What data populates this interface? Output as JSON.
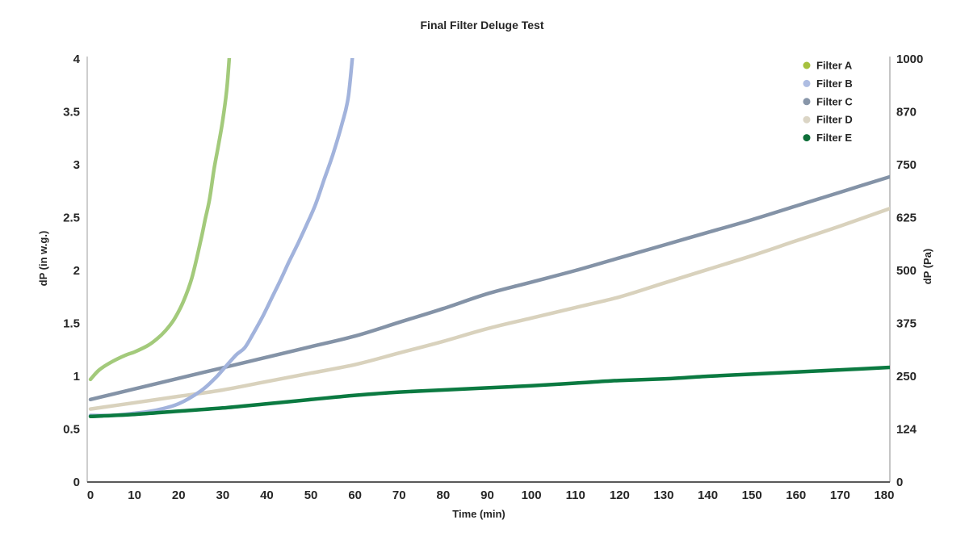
{
  "chart_data": {
    "type": "line",
    "title": "Final Filter Deluge Test",
    "xlabel": "Time (min)",
    "ylabel_left": "dP (in w.g.)",
    "ylabel_right": "dP (Pa)",
    "xlim": [
      0,
      181.6
    ],
    "ylim_left": [
      0,
      4
    ],
    "x_ticks": [
      0,
      10,
      20,
      30,
      40,
      50,
      60,
      70,
      80,
      90,
      100,
      110,
      120,
      130,
      140,
      150,
      160,
      170,
      180
    ],
    "left_tick_labels": [
      "0",
      "0.5",
      "1",
      "1.5",
      "2",
      "2.5",
      "3",
      "3.5",
      "4"
    ],
    "right_tick_labels": [
      "0",
      "124",
      "250",
      "375",
      "500",
      "625",
      "750",
      "870",
      "1000"
    ],
    "grid": false,
    "legend_position": "top-right-inside",
    "text_color": "#262626",
    "axis_line_color": "#a6a6a6",
    "baseline_color": "#595959",
    "series": [
      {
        "name": "Filter C",
        "line_color": "#8493a7",
        "marker_color": "#8896a9",
        "points": [
          [
            0,
            0.78
          ],
          [
            10,
            0.88
          ],
          [
            20,
            0.98
          ],
          [
            30,
            1.08
          ],
          [
            40,
            1.18
          ],
          [
            50,
            1.28
          ],
          [
            60,
            1.38
          ],
          [
            70,
            1.51
          ],
          [
            80,
            1.64
          ],
          [
            90,
            1.78
          ],
          [
            100,
            1.89
          ],
          [
            110,
            2.0
          ],
          [
            120,
            2.12
          ],
          [
            130,
            2.24
          ],
          [
            140,
            2.36
          ],
          [
            150,
            2.48
          ],
          [
            160,
            2.61
          ],
          [
            170,
            2.74
          ],
          [
            181.6,
            2.89
          ]
        ]
      },
      {
        "name": "Filter D",
        "line_color": "#d9d2bd",
        "marker_color": "#dbd5c5",
        "points": [
          [
            0,
            0.69
          ],
          [
            10,
            0.75
          ],
          [
            20,
            0.81
          ],
          [
            30,
            0.87
          ],
          [
            40,
            0.95
          ],
          [
            50,
            1.03
          ],
          [
            60,
            1.11
          ],
          [
            70,
            1.22
          ],
          [
            80,
            1.33
          ],
          [
            90,
            1.45
          ],
          [
            100,
            1.55
          ],
          [
            110,
            1.65
          ],
          [
            120,
            1.75
          ],
          [
            130,
            1.88
          ],
          [
            140,
            2.01
          ],
          [
            150,
            2.14
          ],
          [
            160,
            2.28
          ],
          [
            170,
            2.42
          ],
          [
            181.6,
            2.59
          ]
        ]
      },
      {
        "name": "Filter A",
        "line_color": "#a3ca7b",
        "marker_color": "#a6c13e",
        "points": [
          [
            0,
            0.97
          ],
          [
            2,
            1.06
          ],
          [
            5,
            1.14
          ],
          [
            8,
            1.2
          ],
          [
            10,
            1.23
          ],
          [
            13,
            1.29
          ],
          [
            15,
            1.35
          ],
          [
            17,
            1.43
          ],
          [
            19,
            1.54
          ],
          [
            21,
            1.7
          ],
          [
            23,
            1.93
          ],
          [
            25,
            2.28
          ],
          [
            26,
            2.48
          ],
          [
            27,
            2.67
          ],
          [
            28,
            2.95
          ],
          [
            29,
            3.18
          ],
          [
            30,
            3.42
          ],
          [
            31,
            3.75
          ],
          [
            31.8,
            4.2
          ]
        ]
      },
      {
        "name": "Filter B",
        "line_color": "#a2b3dc",
        "marker_color": "#aebde2",
        "points": [
          [
            0,
            0.63
          ],
          [
            5,
            0.63
          ],
          [
            10,
            0.65
          ],
          [
            15,
            0.68
          ],
          [
            20,
            0.74
          ],
          [
            25,
            0.86
          ],
          [
            28,
            0.97
          ],
          [
            30,
            1.06
          ],
          [
            33,
            1.2
          ],
          [
            35,
            1.27
          ],
          [
            37,
            1.41
          ],
          [
            39,
            1.56
          ],
          [
            41,
            1.73
          ],
          [
            43,
            1.9
          ],
          [
            45,
            2.08
          ],
          [
            47,
            2.25
          ],
          [
            49,
            2.43
          ],
          [
            51,
            2.62
          ],
          [
            53,
            2.86
          ],
          [
            55,
            3.1
          ],
          [
            57,
            3.38
          ],
          [
            58.5,
            3.65
          ],
          [
            59.8,
            4.2
          ]
        ]
      },
      {
        "name": "Filter E",
        "line_color": "#0b7a41",
        "marker_color": "#0e6f39",
        "points": [
          [
            0,
            0.62
          ],
          [
            10,
            0.64
          ],
          [
            20,
            0.67
          ],
          [
            30,
            0.7
          ],
          [
            40,
            0.74
          ],
          [
            50,
            0.78
          ],
          [
            60,
            0.82
          ],
          [
            70,
            0.85
          ],
          [
            80,
            0.87
          ],
          [
            90,
            0.89
          ],
          [
            100,
            0.91
          ],
          [
            110,
            0.935
          ],
          [
            120,
            0.96
          ],
          [
            130,
            0.975
          ],
          [
            140,
            1.0
          ],
          [
            150,
            1.02
          ],
          [
            160,
            1.04
          ],
          [
            170,
            1.06
          ],
          [
            181.6,
            1.085
          ]
        ]
      }
    ],
    "legend_order": [
      "Filter A",
      "Filter B",
      "Filter C",
      "Filter D",
      "Filter E"
    ]
  }
}
